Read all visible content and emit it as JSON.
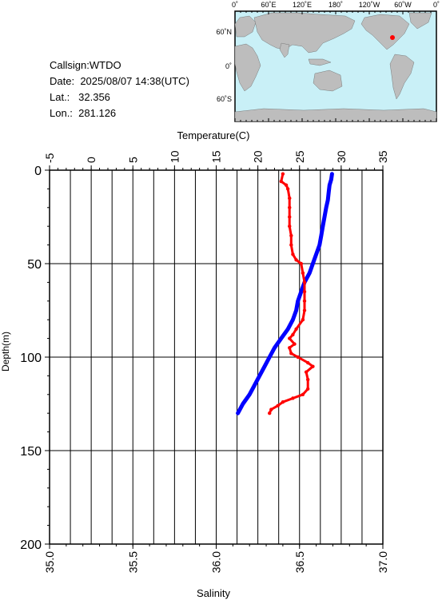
{
  "station": {
    "callsign_label": "Callsign:",
    "callsign": "WTDO",
    "date_label": "Date:",
    "date": "2025/08/07 14:38(UTC)",
    "lat_label": "Lat.:",
    "lat": "32.356",
    "lon_label": "Lon.:",
    "lon": "281.126"
  },
  "map": {
    "top_labels": [
      "0˚",
      "60˚E",
      "120˚E",
      "180˚",
      "120˚W",
      "60˚W",
      "0˚"
    ],
    "left_labels": [
      "60˚N",
      "0˚",
      "60˚S"
    ],
    "ocean_color": "#c9f0f7",
    "land_color": "#bdbdbd",
    "marker_color": "#ff0000"
  },
  "chart_data": {
    "type": "line",
    "title": "",
    "top_axis": {
      "label": "Temperature(C)",
      "range": [
        -5,
        35
      ],
      "ticks": [
        "-5",
        "0",
        "5",
        "10",
        "15",
        "20",
        "25",
        "30",
        "35"
      ]
    },
    "bottom_axis": {
      "label": "Salinity",
      "range": [
        35.0,
        37.0
      ],
      "ticks": [
        "35.0",
        "35.5",
        "36.0",
        "36.5",
        "37.0"
      ]
    },
    "y_axis": {
      "label": "Depth(m)",
      "range": [
        0,
        200
      ],
      "inverted": true,
      "ticks": [
        "0",
        "50",
        "100",
        "150",
        "200"
      ]
    },
    "grid": true,
    "series": [
      {
        "axis": "temperature",
        "color": "#0000ff",
        "points": [
          [
            28.9,
            2
          ],
          [
            28.8,
            5
          ],
          [
            28.6,
            8
          ],
          [
            28.5,
            12
          ],
          [
            28.4,
            16
          ],
          [
            28.2,
            20
          ],
          [
            28.0,
            25
          ],
          [
            27.8,
            30
          ],
          [
            27.6,
            35
          ],
          [
            27.4,
            40
          ],
          [
            27.0,
            45
          ],
          [
            26.6,
            50
          ],
          [
            26.2,
            55
          ],
          [
            25.6,
            60
          ],
          [
            25.2,
            65
          ],
          [
            24.8,
            70
          ],
          [
            24.6,
            75
          ],
          [
            24.2,
            80
          ],
          [
            23.6,
            85
          ],
          [
            22.8,
            90
          ],
          [
            22.0,
            95
          ],
          [
            21.4,
            100
          ],
          [
            20.8,
            105
          ],
          [
            20.2,
            110
          ],
          [
            19.6,
            115
          ],
          [
            19.0,
            120
          ],
          [
            18.2,
            125
          ],
          [
            17.6,
            130
          ]
        ]
      },
      {
        "axis": "salinity",
        "color": "#ff0000",
        "points": [
          [
            36.4,
            2
          ],
          [
            36.39,
            6
          ],
          [
            36.42,
            8
          ],
          [
            36.43,
            10
          ],
          [
            36.44,
            15
          ],
          [
            36.44,
            20
          ],
          [
            36.44,
            25
          ],
          [
            36.44,
            30
          ],
          [
            36.45,
            35
          ],
          [
            36.45,
            40
          ],
          [
            36.46,
            45
          ],
          [
            36.48,
            48
          ],
          [
            36.51,
            50
          ],
          [
            36.52,
            55
          ],
          [
            36.53,
            60
          ],
          [
            36.53,
            65
          ],
          [
            36.53,
            70
          ],
          [
            36.53,
            75
          ],
          [
            36.52,
            80
          ],
          [
            36.48,
            85
          ],
          [
            36.46,
            88
          ],
          [
            36.44,
            90
          ],
          [
            36.47,
            93
          ],
          [
            36.44,
            95
          ],
          [
            36.45,
            98
          ],
          [
            36.49,
            100
          ],
          [
            36.55,
            103
          ],
          [
            36.58,
            105
          ],
          [
            36.54,
            108
          ],
          [
            36.55,
            112
          ],
          [
            36.55,
            117
          ],
          [
            36.52,
            120
          ],
          [
            36.46,
            122
          ],
          [
            36.4,
            124
          ],
          [
            36.37,
            126
          ],
          [
            36.33,
            128
          ],
          [
            36.32,
            130
          ]
        ]
      }
    ]
  }
}
